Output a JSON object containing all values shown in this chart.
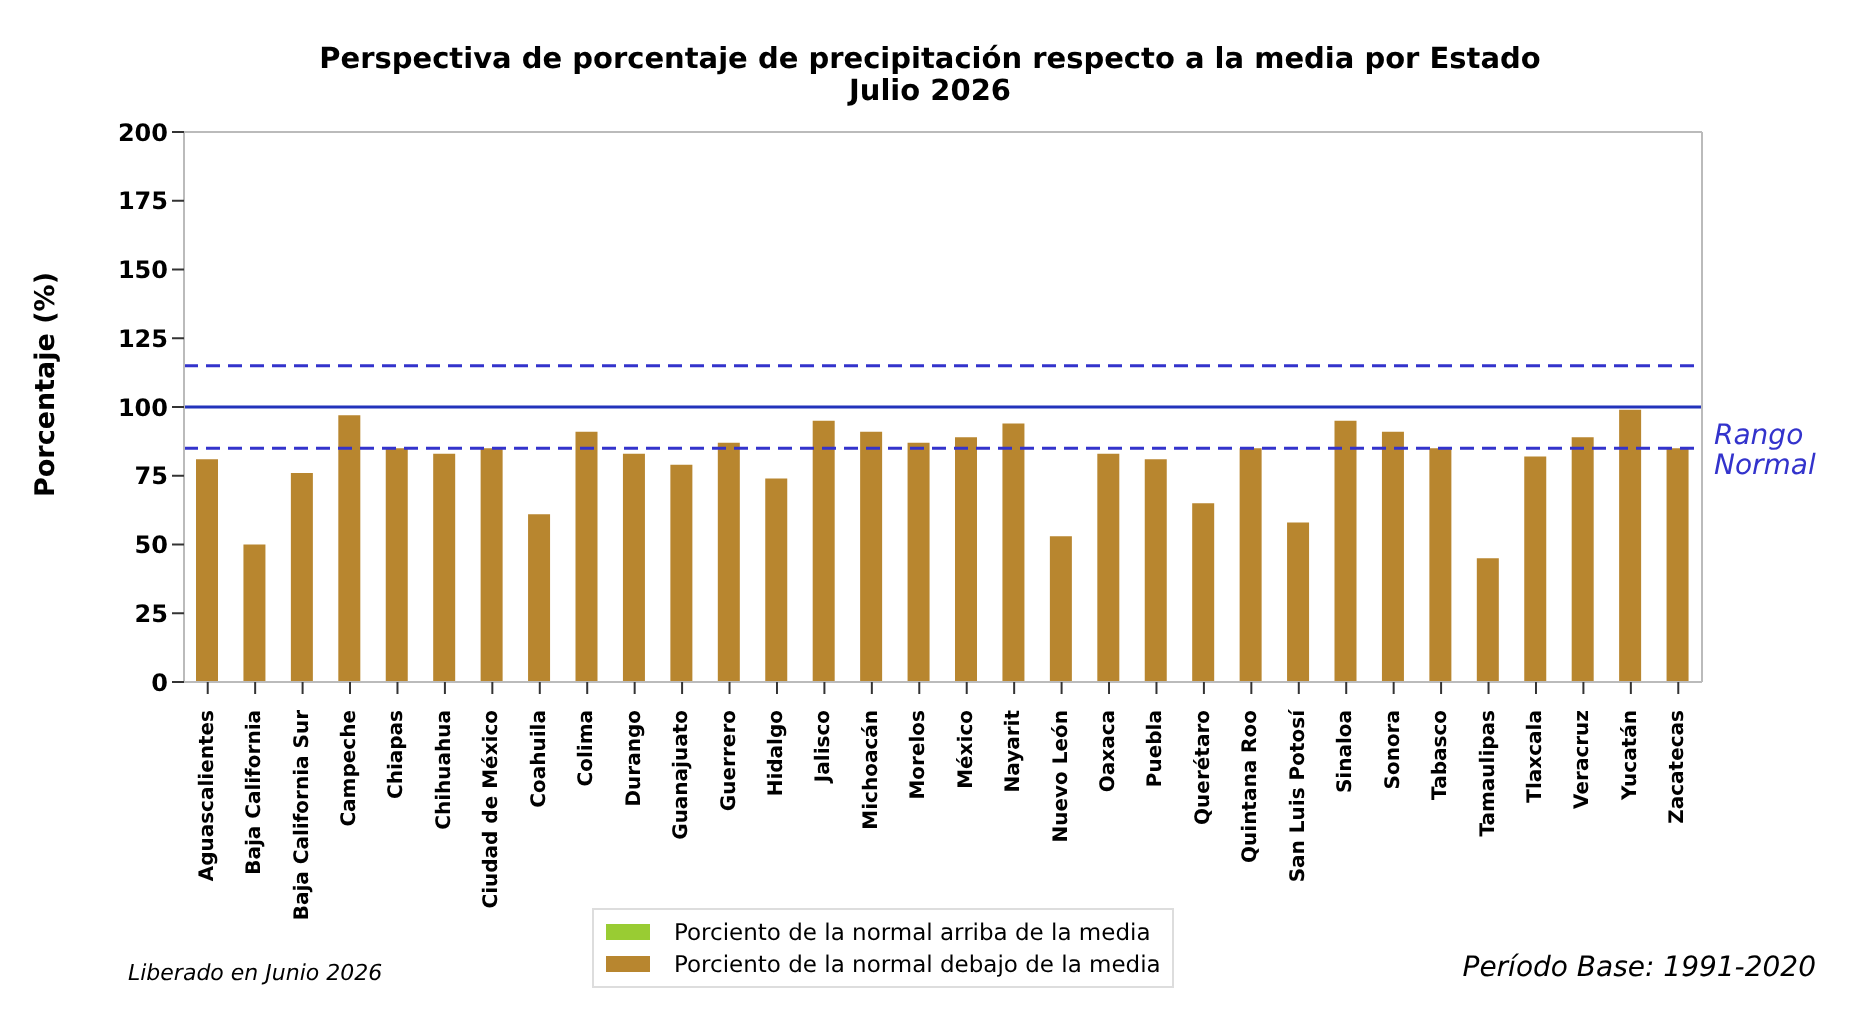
{
  "chart_data": {
    "type": "bar",
    "title": "Perspectiva de porcentaje de precipitación respecto a la media por Estado",
    "subtitle": "Julio 2026",
    "ylabel": "Porcentaje (%)",
    "categories": [
      "Aguascalientes",
      "Baja California",
      "Baja California Sur",
      "Campeche",
      "Chiapas",
      "Chihuahua",
      "Ciudad de México",
      "Coahuila",
      "Colima",
      "Durango",
      "Guanajuato",
      "Guerrero",
      "Hidalgo",
      "Jalisco",
      "Michoacán",
      "Morelos",
      "México",
      "Nayarit",
      "Nuevo León",
      "Oaxaca",
      "Puebla",
      "Querétaro",
      "Quintana Roo",
      "San Luis Potosí",
      "Sinaloa",
      "Sonora",
      "Tabasco",
      "Tamaulipas",
      "Tlaxcala",
      "Veracruz",
      "Yucatán",
      "Zacatecas"
    ],
    "series": [
      {
        "name": "Porciento de la normal arriba de la media",
        "color": "#99cc33",
        "values": [
          null,
          null,
          null,
          null,
          null,
          null,
          null,
          null,
          null,
          null,
          null,
          null,
          null,
          null,
          null,
          null,
          null,
          null,
          null,
          null,
          null,
          null,
          null,
          null,
          null,
          null,
          null,
          null,
          null,
          null,
          null,
          null
        ]
      },
      {
        "name": "Porciento de la normal debajo de la media",
        "color": "#b8862f",
        "values": [
          81,
          50,
          76,
          97,
          85,
          83,
          85,
          61,
          91,
          83,
          79,
          87,
          74,
          95,
          91,
          87,
          89,
          94,
          53,
          83,
          81,
          65,
          85,
          58,
          95,
          91,
          85,
          45,
          82,
          89,
          99,
          85
        ]
      }
    ],
    "stacked": true,
    "ylim": [
      0,
      200
    ],
    "yticks": [
      0,
      25,
      50,
      75,
      100,
      125,
      150,
      175,
      200
    ],
    "legend": "bottom",
    "ref_lines": [
      {
        "axis": "y",
        "value": 115,
        "line_style": "dashed",
        "color": "#3333cc"
      },
      {
        "axis": "y",
        "value": 100,
        "line_style": "solid",
        "color": "#2233bb"
      },
      {
        "axis": "y",
        "value": 85,
        "line_style": "dashed",
        "color": "#3333cc",
        "label": "Rango Normal"
      }
    ],
    "annotations": [
      "Liberado en Junio 2026",
      "Período Base: 1991-2020"
    ]
  }
}
